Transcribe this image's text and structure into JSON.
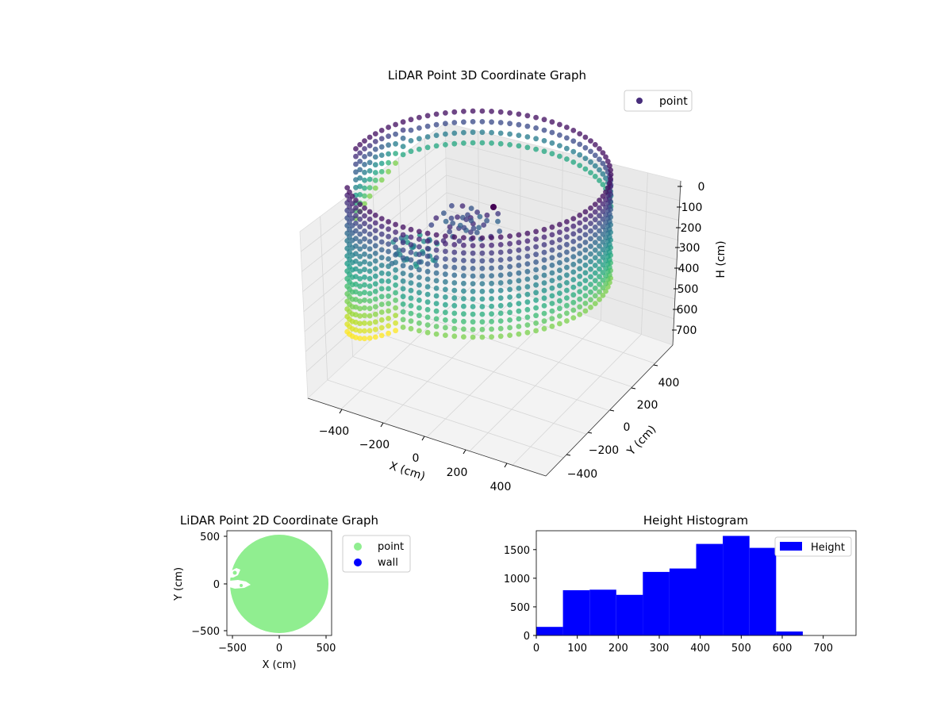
{
  "chart_data": [
    {
      "type": "scatter",
      "projection": "3d",
      "title": "LiDAR Point 3D Coordinate Graph",
      "xlabel": "X (cm)",
      "ylabel": "Y (cm)",
      "zlabel": "H (cm)",
      "x_ticks": [
        "−400",
        "−200",
        "0",
        "200",
        "400"
      ],
      "y_ticks": [
        "400",
        "200",
        "0",
        "−200",
        "−400"
      ],
      "z_ticks": [
        "0",
        "100",
        "200",
        "300",
        "400",
        "500",
        "600",
        "700"
      ],
      "xlim": [
        -550,
        550
      ],
      "ylim": [
        -550,
        550
      ],
      "zlim": [
        0,
        780
      ],
      "z_inverted": true,
      "colormap": "viridis",
      "grid": true,
      "legend": {
        "placement": "top-right",
        "entries": [
          "point"
        ]
      },
      "series": [
        {
          "name": "point",
          "description_shape": "ring wall of radius ~500 cm from H 0 to ~600, opening toward -X, central cluster near H 0"
        }
      ]
    },
    {
      "type": "scatter",
      "title": "LiDAR Point 2D Coordinate Graph",
      "xlabel": "X (cm)",
      "ylabel": "Y (cm)",
      "x_ticks": [
        "−500",
        "0",
        "500"
      ],
      "y_ticks": [
        "500",
        "0",
        "−500"
      ],
      "xlim": [
        -560,
        560
      ],
      "ylim": [
        -560,
        560
      ],
      "legend": {
        "placement": "outside-right",
        "entries": [
          "point",
          "wall"
        ]
      },
      "colors": {
        "point": "#90ee90",
        "wall": "#0000ff"
      },
      "series": [
        {
          "name": "point",
          "color": "#90ee90"
        },
        {
          "name": "wall",
          "color": "#0000ff"
        }
      ]
    },
    {
      "type": "bar",
      "subtype": "histogram",
      "title": "Height Histogram",
      "xlabel": "",
      "ylabel": "",
      "bin_edges": [
        0,
        65,
        130,
        195,
        260,
        325,
        390,
        455,
        520,
        585,
        650,
        715,
        780
      ],
      "values": [
        150,
        790,
        800,
        710,
        1110,
        1170,
        1600,
        1740,
        1530,
        70,
        0,
        0
      ],
      "xlim": [
        0,
        780
      ],
      "ylim": [
        0,
        1830
      ],
      "x_ticks": [
        "0",
        "100",
        "200",
        "300",
        "400",
        "500",
        "600",
        "700"
      ],
      "y_ticks": [
        "0",
        "500",
        "1000",
        "1500"
      ],
      "color": "#0000ff",
      "legend": {
        "placement": "top-right",
        "entries": [
          "Height"
        ]
      },
      "series": [
        {
          "name": "Height",
          "color": "#0000ff"
        }
      ]
    }
  ]
}
